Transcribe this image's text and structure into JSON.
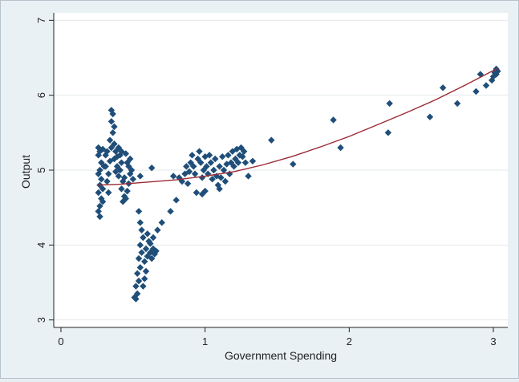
{
  "chart_data": {
    "type": "scatter",
    "title": "",
    "xlabel": "Government Spending",
    "ylabel": "Output",
    "xlim": [
      -0.05,
      3.1
    ],
    "ylim": [
      2.9,
      7.1
    ],
    "xticks": [
      {
        "value": 0,
        "label": "0"
      },
      {
        "value": 1,
        "label": "1"
      },
      {
        "value": 2,
        "label": "2"
      },
      {
        "value": 3,
        "label": "3"
      }
    ],
    "yticks": [
      {
        "value": 3,
        "label": "3"
      },
      {
        "value": 4,
        "label": "4"
      },
      {
        "value": 5,
        "label": "5"
      },
      {
        "value": 6,
        "label": "6"
      },
      {
        "value": 7,
        "label": "7"
      }
    ],
    "grid": "horizontal",
    "legend": "none",
    "colors": {
      "points": "#1f4e79",
      "fit_line": "#9b2a36",
      "plot_bg": "#ffffff",
      "grid": "#e3e9ed"
    },
    "series": [
      {
        "kind": "scatter",
        "points": [
          [
            0.26,
            5.3
          ],
          [
            0.27,
            5.25
          ],
          [
            0.26,
            5.2
          ],
          [
            0.28,
            5.1
          ],
          [
            0.27,
            5.0
          ],
          [
            0.26,
            4.95
          ],
          [
            0.28,
            4.88
          ],
          [
            0.27,
            4.8
          ],
          [
            0.26,
            4.7
          ],
          [
            0.28,
            4.62
          ],
          [
            0.27,
            4.52
          ],
          [
            0.26,
            4.45
          ],
          [
            0.27,
            4.38
          ],
          [
            0.29,
            4.58
          ],
          [
            0.29,
            4.75
          ],
          [
            0.3,
            5.05
          ],
          [
            0.29,
            5.28
          ],
          [
            0.31,
            5.2
          ],
          [
            0.32,
            5.25
          ],
          [
            0.31,
            5.05
          ],
          [
            0.33,
            4.95
          ],
          [
            0.32,
            4.85
          ],
          [
            0.33,
            4.7
          ],
          [
            0.34,
            5.12
          ],
          [
            0.35,
            5.3
          ],
          [
            0.34,
            5.4
          ],
          [
            0.35,
            5.8
          ],
          [
            0.36,
            5.75
          ],
          [
            0.35,
            5.65
          ],
          [
            0.37,
            5.58
          ],
          [
            0.36,
            5.5
          ],
          [
            0.37,
            5.35
          ],
          [
            0.38,
            5.25
          ],
          [
            0.37,
            5.15
          ],
          [
            0.39,
            5.05
          ],
          [
            0.38,
            4.98
          ],
          [
            0.4,
            4.92
          ],
          [
            0.41,
            5.2
          ],
          [
            0.4,
            5.3
          ],
          [
            0.42,
            5.1
          ],
          [
            0.41,
            5.0
          ],
          [
            0.43,
            4.85
          ],
          [
            0.42,
            4.75
          ],
          [
            0.44,
            4.65
          ],
          [
            0.43,
            4.58
          ],
          [
            0.45,
            4.62
          ],
          [
            0.44,
            4.9
          ],
          [
            0.46,
            5.1
          ],
          [
            0.45,
            5.22
          ],
          [
            0.47,
            5.05
          ],
          [
            0.48,
            4.95
          ],
          [
            0.47,
            4.82
          ],
          [
            0.46,
            4.72
          ],
          [
            0.49,
            5.0
          ],
          [
            0.5,
            4.88
          ],
          [
            0.48,
            5.15
          ],
          [
            0.42,
            5.25
          ],
          [
            0.39,
            5.18
          ],
          [
            0.51,
            3.3
          ],
          [
            0.52,
            3.28
          ],
          [
            0.53,
            3.35
          ],
          [
            0.52,
            3.45
          ],
          [
            0.54,
            3.52
          ],
          [
            0.53,
            3.62
          ],
          [
            0.55,
            3.7
          ],
          [
            0.54,
            3.82
          ],
          [
            0.56,
            3.9
          ],
          [
            0.55,
            4.0
          ],
          [
            0.57,
            4.1
          ],
          [
            0.56,
            4.2
          ],
          [
            0.55,
            4.3
          ],
          [
            0.54,
            4.45
          ],
          [
            0.55,
            4.92
          ],
          [
            0.57,
            3.45
          ],
          [
            0.58,
            3.55
          ],
          [
            0.59,
            3.65
          ],
          [
            0.58,
            3.78
          ],
          [
            0.6,
            3.85
          ],
          [
            0.59,
            3.95
          ],
          [
            0.61,
            4.05
          ],
          [
            0.6,
            4.15
          ],
          [
            0.62,
            3.9
          ],
          [
            0.63,
            3.82
          ],
          [
            0.62,
            4.02
          ],
          [
            0.64,
            3.95
          ],
          [
            0.65,
            3.88
          ],
          [
            0.64,
            4.1
          ],
          [
            0.63,
            5.03
          ],
          [
            0.66,
            3.92
          ],
          [
            0.67,
            4.2
          ],
          [
            0.7,
            4.3
          ],
          [
            0.76,
            4.45
          ],
          [
            0.8,
            4.6
          ],
          [
            0.78,
            4.92
          ],
          [
            0.82,
            4.9
          ],
          [
            0.84,
            4.85
          ],
          [
            0.86,
            4.95
          ],
          [
            0.87,
            5.05
          ],
          [
            0.88,
            4.82
          ],
          [
            0.89,
            4.98
          ],
          [
            0.9,
            5.1
          ],
          [
            0.91,
            5.2
          ],
          [
            0.92,
            5.05
          ],
          [
            0.93,
            4.95
          ],
          [
            0.94,
            4.7
          ],
          [
            0.95,
            5.15
          ],
          [
            0.96,
            5.25
          ],
          [
            0.97,
            5.1
          ],
          [
            0.98,
            4.9
          ],
          [
            0.99,
            5.0
          ],
          [
            1.0,
            5.18
          ],
          [
            1.01,
            5.05
          ],
          [
            1.02,
            4.95
          ],
          [
            1.03,
            5.2
          ],
          [
            1.04,
            5.1
          ],
          [
            1.05,
            4.88
          ],
          [
            1.06,
            5.0
          ],
          [
            1.07,
            5.15
          ],
          [
            1.08,
            4.92
          ],
          [
            1.09,
            4.8
          ],
          [
            1.1,
            5.05
          ],
          [
            1.11,
            4.9
          ],
          [
            1.12,
            5.18
          ],
          [
            1.13,
            5.0
          ],
          [
            1.14,
            4.85
          ],
          [
            1.15,
            5.08
          ],
          [
            1.16,
            5.2
          ],
          [
            1.17,
            4.95
          ],
          [
            1.18,
            5.1
          ],
          [
            1.19,
            5.25
          ],
          [
            1.2,
            5.05
          ],
          [
            1.21,
            5.15
          ],
          [
            1.22,
            5.28
          ],
          [
            1.23,
            5.1
          ],
          [
            1.24,
            5.2
          ],
          [
            1.25,
            5.3
          ],
          [
            1.26,
            5.18
          ],
          [
            1.27,
            5.25
          ],
          [
            1.28,
            5.1
          ],
          [
            1.3,
            4.92
          ],
          [
            1.33,
            5.12
          ],
          [
            1.0,
            4.72
          ],
          [
            0.98,
            4.68
          ],
          [
            1.1,
            4.75
          ],
          [
            1.46,
            5.4
          ],
          [
            1.61,
            5.08
          ],
          [
            1.89,
            5.67
          ],
          [
            1.94,
            5.3
          ],
          [
            2.27,
            5.5
          ],
          [
            2.28,
            5.89
          ],
          [
            2.56,
            5.71
          ],
          [
            2.65,
            6.1
          ],
          [
            2.75,
            5.89
          ],
          [
            2.88,
            6.05
          ],
          [
            2.91,
            6.28
          ],
          [
            2.95,
            6.13
          ],
          [
            2.99,
            6.2
          ],
          [
            3.0,
            6.25
          ],
          [
            3.01,
            6.3
          ],
          [
            3.02,
            6.35
          ],
          [
            3.03,
            6.32
          ],
          [
            3.02,
            6.28
          ]
        ]
      },
      {
        "kind": "line",
        "points": [
          [
            0.25,
            4.8
          ],
          [
            0.4,
            4.81
          ],
          [
            0.6,
            4.84
          ],
          [
            0.8,
            4.87
          ],
          [
            1.0,
            4.92
          ],
          [
            1.2,
            4.98
          ],
          [
            1.4,
            5.07
          ],
          [
            1.6,
            5.18
          ],
          [
            1.8,
            5.31
          ],
          [
            2.0,
            5.45
          ],
          [
            2.2,
            5.61
          ],
          [
            2.4,
            5.77
          ],
          [
            2.6,
            5.94
          ],
          [
            2.8,
            6.13
          ],
          [
            3.0,
            6.33
          ],
          [
            3.03,
            6.36
          ]
        ]
      }
    ]
  }
}
